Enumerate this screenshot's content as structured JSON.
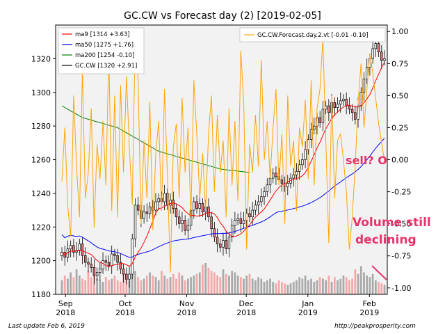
{
  "chart_data": {
    "type": "candlestick",
    "title": "GC.CW vs Forecast day (2)  [2019-02-05]",
    "xlabel": "",
    "ylabel": "",
    "x_ticks": [
      {
        "label": "Sep\n2018",
        "date": "2018-09-01"
      },
      {
        "label": "Oct\n2018",
        "date": "2018-10-01"
      },
      {
        "label": "Nov\n2018",
        "date": "2018-11-01"
      },
      {
        "label": "Dec\n2018",
        "date": "2018-12-01"
      },
      {
        "label": "Jan\n2019",
        "date": "2019-01-01"
      },
      {
        "label": "Feb\n2019",
        "date": "2019-02-01"
      }
    ],
    "ylim_left": [
      1180,
      1340
    ],
    "yticks_left": [
      1180,
      1200,
      1220,
      1240,
      1260,
      1280,
      1300,
      1320
    ],
    "ylim_right": [
      -1.05,
      1.05
    ],
    "yticks_right": [
      1.0,
      0.75,
      0.5,
      0.25,
      0.0,
      -0.25,
      -0.5,
      -0.75,
      -1.0
    ],
    "yticklabels_right": [
      "1.00",
      "0.75",
      "0.50",
      "0.25",
      "0.00",
      "-0.25",
      "-0.50",
      "-0.75",
      "-1.00"
    ],
    "legend_left": [
      {
        "name": "ma9 [1314 +3.63]",
        "color": "#ff0000"
      },
      {
        "name": "ma50 [1275 +1.76]",
        "color": "#0000ff"
      },
      {
        "name": "ma200 [1254 -0.10]",
        "color": "#008000"
      },
      {
        "name": "GC.CW [1320 +2.91]",
        "color": "#000000"
      }
    ],
    "legend_right": [
      {
        "name": "GC.CW.Forecast.day.2.vt [-0.01 -0.10]",
        "color": "#ffa500"
      }
    ],
    "colors": {
      "up_candle": "#ffffff",
      "down_candle": "#e87878",
      "volume_up": "#a9a9a9",
      "volume_down": "#f4a8a8",
      "plot_bg": "#f2f2f2",
      "annotation": "#e8336b"
    },
    "price_series": [
      1205,
      1202,
      1207,
      1209,
      1205,
      1206,
      1210,
      1203,
      1199,
      1198,
      1196,
      1191,
      1193,
      1195,
      1200,
      1199,
      1197,
      1204,
      1203,
      1199,
      1195,
      1192,
      1189,
      1192,
      1213,
      1233,
      1230,
      1225,
      1229,
      1228,
      1232,
      1230,
      1235,
      1237,
      1235,
      1240,
      1233,
      1236,
      1231,
      1226,
      1222,
      1224,
      1218,
      1221,
      1230,
      1235,
      1231,
      1234,
      1229,
      1232,
      1226,
      1219,
      1214,
      1210,
      1208,
      1212,
      1207,
      1214,
      1221,
      1224,
      1225,
      1222,
      1224,
      1228,
      1226,
      1230,
      1233,
      1235,
      1238,
      1241,
      1245,
      1249,
      1252,
      1250,
      1248,
      1246,
      1244,
      1246,
      1249,
      1251,
      1253,
      1257,
      1260,
      1266,
      1272,
      1278,
      1280,
      1285,
      1282,
      1290,
      1292,
      1288,
      1294,
      1291,
      1293,
      1295,
      1296,
      1292,
      1290,
      1288,
      1284,
      1292,
      1300,
      1308,
      1315,
      1320,
      1326,
      1329,
      1324,
      1319,
      1320
    ],
    "forecast_series": [
      -0.17,
      0.25,
      -0.36,
      -0.6,
      0.5,
      -0.05,
      -0.45,
      0.7,
      -0.3,
      -0.1,
      0.4,
      -0.53,
      0.12,
      -0.15,
      0.3,
      -0.2,
      0.85,
      -0.4,
      0.5,
      -0.45,
      0.58,
      -0.1,
      0.65,
      0.1,
      -0.35,
      1.0,
      0.6,
      -0.5,
      0.15,
      -0.3,
      0.45,
      -0.55,
      0.05,
      0.3,
      -0.4,
      0.55,
      -0.15,
      -0.88,
      0.1,
      0.28,
      -0.3,
      0.48,
      -0.1,
      0.25,
      -0.45,
      0.62,
      0.2,
      -0.3,
      0.05,
      -0.4,
      0.2,
      0.5,
      -0.25,
      0.35,
      -0.1,
      0.15,
      -0.45,
      0.4,
      -0.2,
      0.3,
      -0.32,
      0.85,
      0.45,
      -0.7,
      0.12,
      -0.1,
      0.35,
      -0.05,
      0.78,
      0.0,
      0.3,
      -0.15,
      0.25,
      0.55,
      -0.2,
      0.2,
      -0.5,
      0.5,
      -0.05,
      0.15,
      -0.4,
      0.25,
      0.1,
      0.47,
      -0.15,
      0.62,
      -0.2,
      0.4,
      0.55,
      0.95,
      0.15,
      -0.65,
      0.5,
      -0.3,
      0.15,
      0.2,
      0.0,
      -0.25,
      -0.7,
      -0.45,
      -0.05,
      0.45,
      0.75,
      0.25,
      0.55,
      0.82,
      0.68,
      0.48,
      0.28,
      0.13,
      -0.01
    ],
    "volume_series": [
      0.45,
      0.6,
      0.5,
      0.7,
      0.55,
      0.8,
      0.6,
      0.5,
      0.45,
      0.75,
      0.55,
      0.6,
      0.5,
      0.45,
      0.4,
      0.55,
      0.45,
      0.5,
      0.6,
      0.45,
      0.4,
      0.7,
      0.55,
      0.45,
      0.8,
      0.75,
      0.55,
      0.45,
      0.5,
      0.6,
      0.7,
      0.6,
      0.55,
      0.45,
      0.75,
      0.6,
      0.5,
      0.55,
      0.65,
      0.5,
      0.7,
      0.6,
      0.45,
      0.5,
      0.55,
      0.6,
      0.65,
      0.7,
      0.95,
      1.0,
      0.85,
      0.75,
      0.7,
      0.6,
      0.55,
      0.8,
      0.65,
      0.6,
      0.75,
      0.7,
      0.6,
      0.55,
      0.5,
      0.6,
      0.65,
      0.5,
      0.45,
      0.55,
      0.5,
      0.4,
      0.45,
      0.5,
      0.4,
      0.35,
      0.45,
      0.4,
      0.35,
      0.3,
      0.35,
      0.4,
      0.45,
      0.55,
      0.5,
      0.6,
      0.45,
      0.5,
      0.4,
      0.45,
      0.55,
      0.5,
      0.45,
      0.6,
      0.4,
      0.55,
      0.45,
      0.5,
      0.6,
      0.55,
      0.45,
      0.5,
      0.8,
      0.65,
      0.9,
      0.7,
      0.6,
      0.55,
      0.65,
      0.45,
      0.4,
      0.35,
      0.3
    ],
    "ma200_series": [
      1292,
      1291,
      1290,
      1289,
      1288,
      1287,
      1286,
      1285,
      1284.5,
      1284,
      1283.5,
      1283,
      1282.5,
      1282,
      1281.5,
      1281,
      1280.5,
      1280,
      1279.5,
      1279,
      1278,
      1277,
      1276,
      1275,
      1274,
      1273,
      1272,
      1271,
      1270,
      1269,
      1268,
      1267,
      1266,
      1265,
      1264.5,
      1264,
      1263.5,
      1263,
      1262.5,
      1262,
      1261.5,
      1261,
      1260.5,
      1260,
      1259.5,
      1259,
      1258.5,
      1258,
      1257.5,
      1257,
      1256.5,
      1256,
      1255.5,
      1255,
      1254.5,
      1254.2,
      1254,
      1253.8,
      1253.6,
      1253.4,
      1253.2,
      1253,
      1252.8,
      1252.6,
      1252.4
    ]
  },
  "annotations": {
    "sell": "sell? O",
    "volume_line1": "Volume still",
    "volume_line2": "declining"
  },
  "footer": {
    "last_update": "Last update Feb  6, 2019",
    "url": "http://peakprosperity.com"
  }
}
